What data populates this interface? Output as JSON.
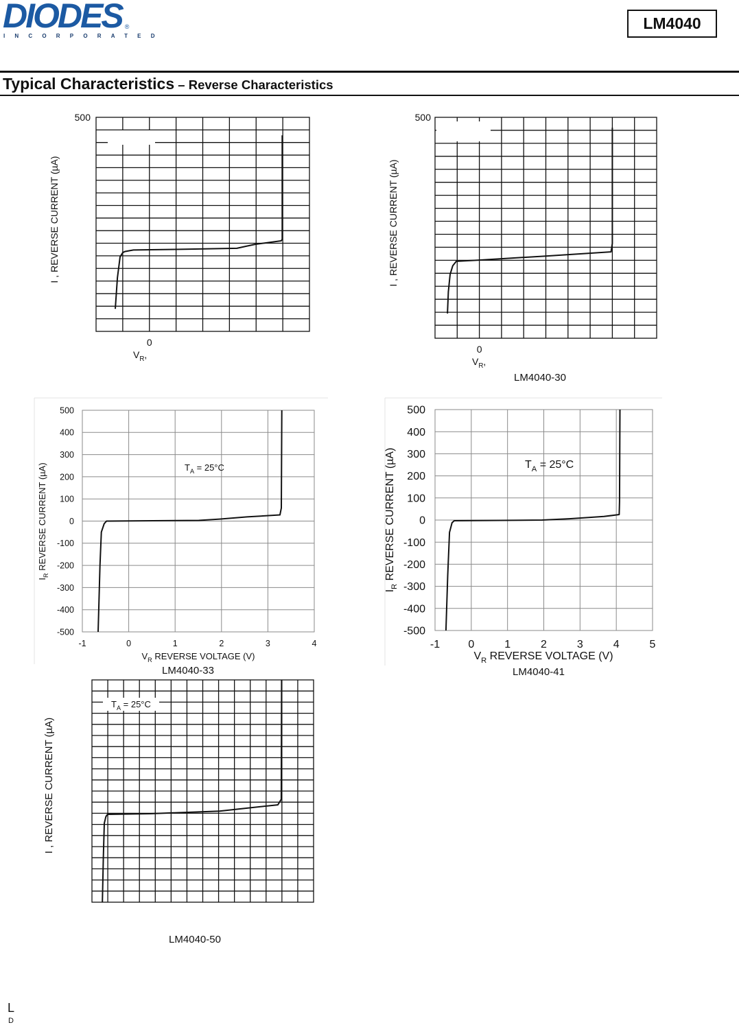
{
  "header": {
    "logo": "DIODES",
    "logo_reg": "®",
    "logo_sub": "INCORPORATED",
    "part": "LM4040"
  },
  "title": {
    "main": "Typical Characteristics",
    "sub": " – Reverse Characteristics"
  },
  "chart_data": [
    {
      "type": "line",
      "caption": "",
      "ylabel": {
        "pre": "I , REVERSE CURRENT (µA)",
        "sub": "",
        "post": ""
      },
      "xlabel": {
        "pre": "V",
        "sub": "R",
        "post": ","
      },
      "xlim": [
        -1,
        3
      ],
      "ylim": [
        -500,
        500
      ],
      "x_ticks": [
        {
          "value": 0,
          "label": "0"
        }
      ],
      "y_ticks": [
        {
          "value": 500,
          "label": "500"
        }
      ],
      "annotation": null,
      "grid": true,
      "series": [
        {
          "name": "reverse current",
          "x": [
            -0.64,
            -0.6,
            -0.55,
            -0.5,
            -0.46,
            -0.3,
            0.5,
            1.64,
            1.8,
            1.99,
            2.47,
            2.49,
            2.49
          ],
          "y": [
            -395,
            -250,
            -152,
            -132,
            -127,
            -120,
            -117,
            -112,
            -103,
            -93,
            -77,
            -70,
            416
          ]
        }
      ]
    },
    {
      "type": "line",
      "caption": "LM4040-30",
      "ylabel": {
        "pre": "I , REVERSE CURRENT (µA)",
        "sub": "",
        "post": ""
      },
      "xlabel": {
        "pre": "V",
        "sub": "R",
        "post": ","
      },
      "xlim": [
        -1,
        4
      ],
      "ylim": [
        -500,
        500
      ],
      "x_ticks": [
        {
          "value": 0,
          "label": "0"
        }
      ],
      "y_ticks": [
        {
          "value": 500,
          "label": "500"
        }
      ],
      "annotation": null,
      "grid": true,
      "series": [
        {
          "name": "reverse current",
          "x": [
            -0.72,
            -0.7,
            -0.66,
            -0.6,
            -0.52,
            0.03,
            1.5,
            2.97,
            3.0,
            3.0
          ],
          "y": [
            -388,
            -290,
            -211,
            -172,
            -152,
            -146,
            -128,
            -109,
            -71,
            453
          ]
        }
      ]
    },
    {
      "type": "line",
      "caption": "LM4040-33",
      "ylabel": {
        "pre": "I",
        "sub": "R",
        "post": " REVERSE CURRENT (µA)"
      },
      "xlabel": {
        "pre": "V",
        "sub": "R",
        "post": " REVERSE VOLTAGE (V)"
      },
      "xlim": [
        -1,
        4
      ],
      "ylim": [
        -500,
        500
      ],
      "x_ticks": [
        {
          "value": -1,
          "label": "-1"
        },
        {
          "value": 0,
          "label": "0"
        },
        {
          "value": 1,
          "label": "1"
        },
        {
          "value": 2,
          "label": "2"
        },
        {
          "value": 3,
          "label": "3"
        },
        {
          "value": 4,
          "label": "4"
        }
      ],
      "y_ticks": [
        {
          "value": 500,
          "label": "500"
        },
        {
          "value": 400,
          "label": "400"
        },
        {
          "value": 300,
          "label": "300"
        },
        {
          "value": 200,
          "label": "200"
        },
        {
          "value": 100,
          "label": "100"
        },
        {
          "value": 0,
          "label": "0"
        },
        {
          "value": -100,
          "label": "-100"
        },
        {
          "value": -200,
          "label": "-200"
        },
        {
          "value": -300,
          "label": "-300"
        },
        {
          "value": -400,
          "label": "-400"
        },
        {
          "value": -500,
          "label": "-500"
        }
      ],
      "annotation": {
        "pre": "T",
        "sub": "A",
        "post": " = 25°C"
      },
      "grid": true,
      "series": [
        {
          "name": "reverse current",
          "x": [
            -0.66,
            -0.62,
            -0.59,
            -0.53,
            -0.48,
            -0.41,
            1.51,
            1.96,
            2.55,
            3.26,
            3.29,
            3.3
          ],
          "y": [
            -500,
            -200,
            -50,
            -12,
            0,
            0,
            3,
            9,
            19,
            28,
            59,
            500
          ]
        }
      ]
    },
    {
      "type": "line",
      "caption": "LM4040-41",
      "ylabel": {
        "pre": "I",
        "sub": "R",
        "post": " REVERSE CURRENT (µA)"
      },
      "xlabel": {
        "pre": "V",
        "sub": "R",
        "post": " REVERSE VOLTAGE (V)"
      },
      "xlim": [
        -1,
        5
      ],
      "ylim": [
        -500,
        500
      ],
      "x_ticks": [
        {
          "value": -1,
          "label": "-1"
        },
        {
          "value": 0,
          "label": "0"
        },
        {
          "value": 1,
          "label": "1"
        },
        {
          "value": 2,
          "label": "2"
        },
        {
          "value": 3,
          "label": "3"
        },
        {
          "value": 4,
          "label": "4"
        },
        {
          "value": 5,
          "label": "5"
        }
      ],
      "y_ticks": [
        {
          "value": 500,
          "label": "500"
        },
        {
          "value": 400,
          "label": "400"
        },
        {
          "value": 300,
          "label": "300"
        },
        {
          "value": 200,
          "label": "200"
        },
        {
          "value": 100,
          "label": "100"
        },
        {
          "value": 0,
          "label": "0"
        },
        {
          "value": -100,
          "label": "-100"
        },
        {
          "value": -200,
          "label": "-200"
        },
        {
          "value": -300,
          "label": "-300"
        },
        {
          "value": -400,
          "label": "-400"
        },
        {
          "value": -500,
          "label": "-500"
        }
      ],
      "annotation": {
        "pre": "T",
        "sub": "A",
        "post": " = 25°C"
      },
      "grid": true,
      "series": [
        {
          "name": "reverse current",
          "x": [
            -0.7,
            -0.65,
            -0.6,
            -0.53,
            -0.47,
            1.95,
            2.71,
            3.66,
            4.08,
            4.09,
            4.1
          ],
          "y": [
            -500,
            -250,
            -56,
            -12,
            -3,
            0,
            6,
            16,
            25,
            84,
            500
          ]
        }
      ]
    },
    {
      "type": "line",
      "caption": "LM4040-50",
      "ylabel": {
        "pre": "I , REVERSE CURRENT (µA)",
        "sub": "",
        "post": ""
      },
      "xlabel": null,
      "xlim": [
        -1,
        6
      ],
      "ylim": [
        -500,
        500
      ],
      "x_ticks": [],
      "y_ticks": [],
      "annotation": {
        "pre": "T",
        "sub": "A",
        "post": " = 25°C"
      },
      "grid": true,
      "series": [
        {
          "name": "reverse current",
          "x": [
            -0.67,
            -0.64,
            -0.61,
            -0.56,
            -0.51,
            0.86,
            3.03,
            4.87,
            4.98,
            4.99
          ],
          "y": [
            -500,
            -300,
            -145,
            -115,
            -105,
            -102,
            -90,
            -62,
            -37,
            500
          ]
        }
      ]
    }
  ],
  "footer": {
    "left_top": "L",
    "left_bottom": "D"
  }
}
